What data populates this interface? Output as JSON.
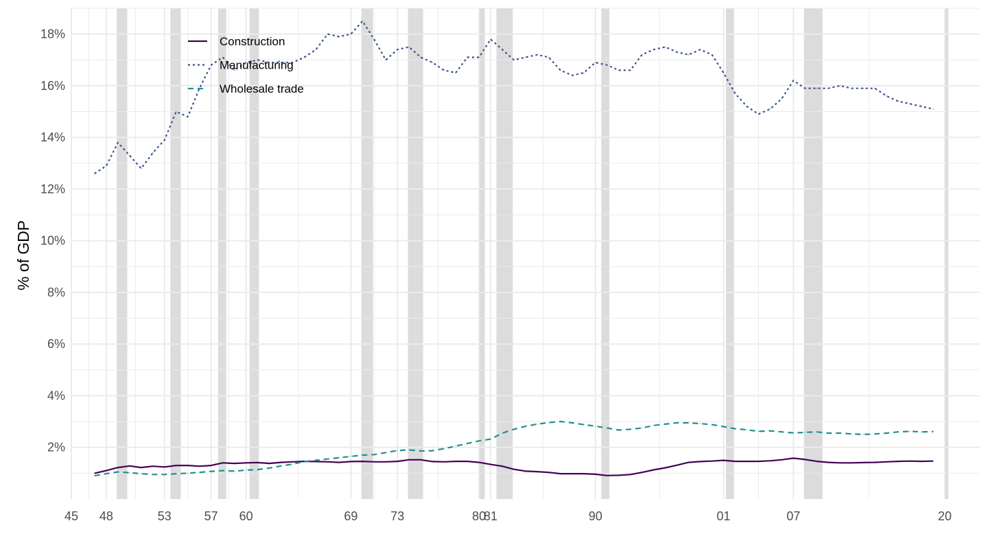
{
  "chart_data": {
    "type": "line",
    "ylabel": "% of GDP",
    "xlabel": "",
    "xlim": [
      1945,
      2023
    ],
    "ylim": [
      0,
      19
    ],
    "y_ticks": [
      2,
      4,
      6,
      8,
      10,
      12,
      14,
      16,
      18
    ],
    "y_tick_format": "%",
    "x_ticks": [
      {
        "value": 1945,
        "label": "45"
      },
      {
        "value": 1948,
        "label": "48"
      },
      {
        "value": 1953,
        "label": "53"
      },
      {
        "value": 1957,
        "label": "57"
      },
      {
        "value": 1960,
        "label": "60"
      },
      {
        "value": 1969,
        "label": "69"
      },
      {
        "value": 1973,
        "label": "73"
      },
      {
        "value": 1980,
        "label": "80"
      },
      {
        "value": 1981,
        "label": "81"
      },
      {
        "value": 1990,
        "label": "90"
      },
      {
        "value": 2001,
        "label": "01"
      },
      {
        "value": 2007,
        "label": "07"
      },
      {
        "value": 2020,
        "label": "20"
      }
    ],
    "grid": true,
    "legend_position": "top-left",
    "recessions": [
      [
        1948.9,
        1949.8
      ],
      [
        1953.5,
        1954.4
      ],
      [
        1957.6,
        1958.3
      ],
      [
        1960.3,
        1961.1
      ],
      [
        1969.9,
        1970.9
      ],
      [
        1973.9,
        1975.2
      ],
      [
        1980.0,
        1980.5
      ],
      [
        1981.5,
        1982.9
      ],
      [
        1990.5,
        1991.2
      ],
      [
        2001.2,
        2001.9
      ],
      [
        2007.9,
        2009.5
      ],
      [
        2020.0,
        2020.3
      ]
    ],
    "series": [
      {
        "name": "Construction",
        "color": "#440154",
        "dash": "solid",
        "x": [
          1947,
          1948,
          1949,
          1950,
          1951,
          1952,
          1953,
          1954,
          1955,
          1956,
          1957,
          1958,
          1959,
          1960,
          1961,
          1962,
          1963,
          1964,
          1965,
          1966,
          1967,
          1968,
          1969,
          1970,
          1971,
          1972,
          1973,
          1974,
          1975,
          1976,
          1977,
          1978,
          1979,
          1980,
          1981,
          1982,
          1983,
          1984,
          1985,
          1986,
          1987,
          1988,
          1989,
          1990,
          1991,
          1992,
          1993,
          1994,
          1995,
          1996,
          1997,
          1998,
          1999,
          2000,
          2001,
          2002,
          2003,
          2004,
          2005,
          2006,
          2007,
          2008,
          2009,
          2010,
          2011,
          2012,
          2013,
          2014,
          2015,
          2016,
          2017,
          2018,
          2019
        ],
        "values": [
          1.0,
          1.1,
          1.22,
          1.28,
          1.22,
          1.27,
          1.24,
          1.3,
          1.3,
          1.27,
          1.3,
          1.4,
          1.38,
          1.4,
          1.41,
          1.38,
          1.42,
          1.44,
          1.46,
          1.45,
          1.44,
          1.42,
          1.45,
          1.46,
          1.44,
          1.44,
          1.46,
          1.52,
          1.52,
          1.45,
          1.44,
          1.46,
          1.46,
          1.42,
          1.34,
          1.27,
          1.15,
          1.08,
          1.06,
          1.03,
          0.98,
          0.98,
          0.98,
          0.96,
          0.91,
          0.92,
          0.95,
          1.03,
          1.13,
          1.21,
          1.31,
          1.42,
          1.45,
          1.47,
          1.5,
          1.46,
          1.46,
          1.46,
          1.48,
          1.52,
          1.58,
          1.53,
          1.46,
          1.42,
          1.4,
          1.4,
          1.41,
          1.42,
          1.44,
          1.46,
          1.47,
          1.46,
          1.47
        ]
      },
      {
        "name": "Manufacturing",
        "color": "#3b528b",
        "dash": "dotted",
        "x": [
          1947,
          1948,
          1949,
          1950,
          1951,
          1952,
          1953,
          1954,
          1955,
          1956,
          1957,
          1958,
          1959,
          1960,
          1961,
          1962,
          1963,
          1964,
          1965,
          1966,
          1967,
          1968,
          1969,
          1970,
          1971,
          1972,
          1973,
          1974,
          1975,
          1976,
          1977,
          1978,
          1979,
          1980,
          1981,
          1982,
          1983,
          1984,
          1985,
          1986,
          1987,
          1988,
          1989,
          1990,
          1991,
          1992,
          1993,
          1994,
          1995,
          1996,
          1997,
          1998,
          1999,
          2000,
          2001,
          2002,
          2003,
          2004,
          2005,
          2006,
          2007,
          2008,
          2009,
          2010,
          2011,
          2012,
          2013,
          2014,
          2015,
          2016,
          2017,
          2018,
          2019
        ],
        "values": [
          12.6,
          12.9,
          13.8,
          13.3,
          12.8,
          13.4,
          13.9,
          15.0,
          14.8,
          15.9,
          16.8,
          17.1,
          16.6,
          16.9,
          17.0,
          16.9,
          16.9,
          16.9,
          17.1,
          17.4,
          18.0,
          17.9,
          18.0,
          18.5,
          17.8,
          17.0,
          17.4,
          17.5,
          17.1,
          16.9,
          16.6,
          16.5,
          17.1,
          17.1,
          17.8,
          17.4,
          17.0,
          17.1,
          17.2,
          17.1,
          16.6,
          16.4,
          16.5,
          16.9,
          16.8,
          16.6,
          16.6,
          17.2,
          17.4,
          17.5,
          17.3,
          17.2,
          17.4,
          17.2,
          16.5,
          15.7,
          15.2,
          14.9,
          15.1,
          15.5,
          16.2,
          15.9,
          15.9,
          15.9,
          16.0,
          15.9,
          15.9,
          15.9,
          15.6,
          15.4,
          15.3,
          15.2,
          15.1
        ]
      },
      {
        "name": "Wholesale trade",
        "color": "#21908c",
        "dash": "dashed",
        "x": [
          1947,
          1948,
          1949,
          1950,
          1951,
          1952,
          1953,
          1954,
          1955,
          1956,
          1957,
          1958,
          1959,
          1960,
          1961,
          1962,
          1963,
          1964,
          1965,
          1966,
          1967,
          1968,
          1969,
          1970,
          1971,
          1972,
          1973,
          1974,
          1975,
          1976,
          1977,
          1978,
          1979,
          1980,
          1981,
          1982,
          1983,
          1984,
          1985,
          1986,
          1987,
          1988,
          1989,
          1990,
          1991,
          1992,
          1993,
          1994,
          1995,
          1996,
          1997,
          1998,
          1999,
          2000,
          2001,
          2002,
          2003,
          2004,
          2005,
          2006,
          2007,
          2008,
          2009,
          2010,
          2011,
          2012,
          2013,
          2014,
          2015,
          2016,
          2017,
          2018,
          2019
        ],
        "values": [
          0.9,
          0.98,
          1.05,
          1.02,
          0.98,
          0.95,
          0.95,
          0.98,
          1.0,
          1.03,
          1.07,
          1.1,
          1.08,
          1.12,
          1.14,
          1.2,
          1.28,
          1.35,
          1.45,
          1.5,
          1.55,
          1.6,
          1.65,
          1.7,
          1.72,
          1.8,
          1.88,
          1.9,
          1.86,
          1.87,
          1.95,
          2.05,
          2.15,
          2.25,
          2.32,
          2.55,
          2.7,
          2.82,
          2.9,
          2.96,
          3.0,
          2.95,
          2.88,
          2.82,
          2.75,
          2.67,
          2.7,
          2.75,
          2.85,
          2.9,
          2.95,
          2.95,
          2.92,
          2.88,
          2.8,
          2.72,
          2.68,
          2.62,
          2.64,
          2.6,
          2.56,
          2.58,
          2.6,
          2.55,
          2.55,
          2.52,
          2.5,
          2.52,
          2.55,
          2.6,
          2.62,
          2.6,
          2.61
        ]
      }
    ]
  }
}
